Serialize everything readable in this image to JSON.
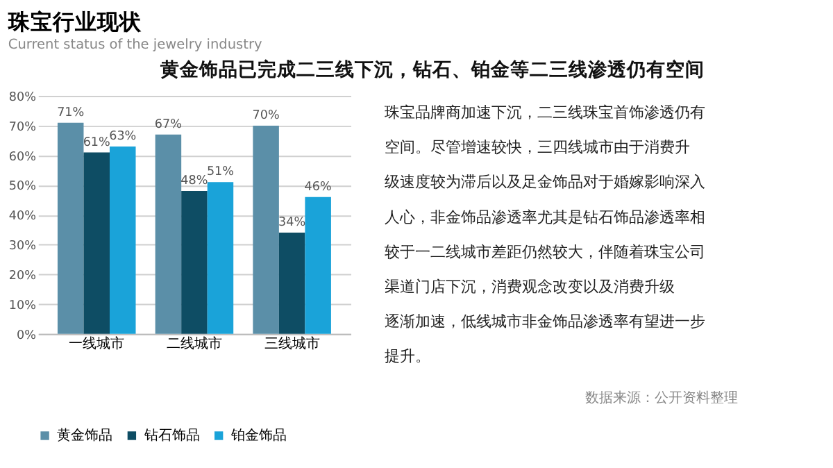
{
  "chart_data": {
    "type": "bar",
    "title": "珠宝行业现状",
    "subtitle": "Current status of the jewelry industry",
    "categories": [
      "一线城市",
      "二线城市",
      "三线城市"
    ],
    "series": [
      {
        "name": "黄金饰品",
        "color": "#5b8fa8",
        "values": [
          71,
          67,
          70
        ],
        "value_labels": [
          "71%",
          "67%",
          "70%"
        ]
      },
      {
        "name": "钻石饰品",
        "color": "#0e4d64",
        "values": [
          61,
          48,
          34
        ],
        "value_labels": [
          "61%",
          "48%",
          "34%"
        ]
      },
      {
        "name": "铂金饰品",
        "color": "#1aa3d9",
        "values": [
          63,
          51,
          46
        ],
        "value_labels": [
          "63%",
          "51%",
          "46%"
        ]
      }
    ],
    "ylim": [
      0,
      80
    ],
    "yticks": [
      {
        "value": 0,
        "label": "0%"
      },
      {
        "value": 10,
        "label": "10%"
      },
      {
        "value": 20,
        "label": "20%"
      },
      {
        "value": 30,
        "label": "30%"
      },
      {
        "value": 40,
        "label": "40%"
      },
      {
        "value": 50,
        "label": "50%"
      },
      {
        "value": 60,
        "label": "60%"
      },
      {
        "value": 70,
        "label": "70%"
      },
      {
        "value": 80,
        "label": "80%"
      }
    ],
    "grid": "y",
    "legend": "bottom",
    "annotations": [
      "黄金饰品已完成二三线下沉，钻石、铂金等二三线渗透仍有空间",
      "珠宝品牌商加速下沉，二三线珠宝首饰渗透仍有",
      "空间。尽管增速较快，三四线城市由于消费升",
      "级速度较为滞后以及足金饰品对于婚嫁影响深入",
      "人心，非金饰品渗透率尤其是钻石饰品渗透率相",
      "较于一二线城市差距仍然较大，伴随着珠宝公司",
      "渠道门店下沉，消费观念改变以及消费升级",
      "逐渐加速，低线城市非金饰品渗透率有望进一步",
      "提升。",
      "数据来源：公开资料整理"
    ]
  }
}
